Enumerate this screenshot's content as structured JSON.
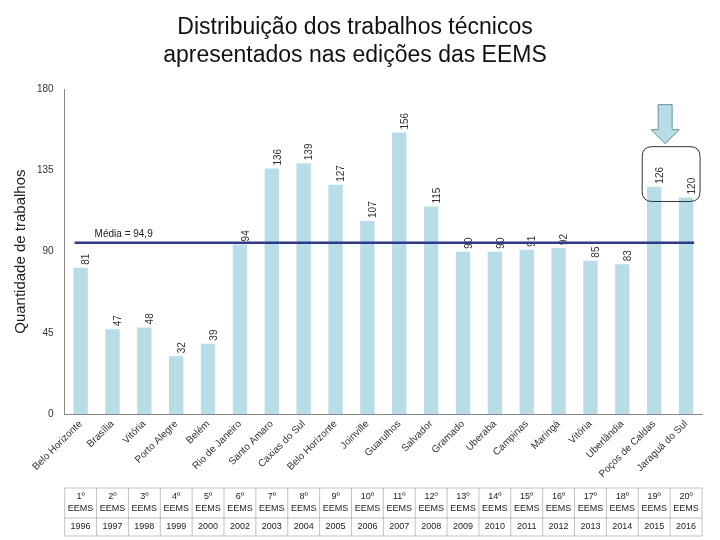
{
  "chart_data": {
    "type": "bar",
    "title": [
      "Distribuição dos trabalhos técnicos",
      "apresentados nas edições das EEMS"
    ],
    "y_label": "Quantidade de trabalhos",
    "categories": [
      "Belo Horizonte",
      "Brasília",
      "Vitória",
      "Porto Alegre",
      "Belém",
      "Rio de Janeiro",
      "Santo Amaro",
      "Caxias do Sul",
      "Belo Horizonte",
      "Joinville",
      "Guarulhos",
      "Salvador",
      "Gramado",
      "Uberaba",
      "Campinas",
      "Maringá",
      "Vitória",
      "Uberlândia",
      "Poços de Caldas",
      "Jaraguá do Sul"
    ],
    "editions": [
      "1º EEMS",
      "2º EEMS",
      "3º EEMS",
      "4º EEMS",
      "5º EEMS",
      "6º EEMS",
      "7º EEMS",
      "8º EEMS",
      "9º EEMS",
      "10º EEMS",
      "11º EEMS",
      "12º EEMS",
      "13º EEMS",
      "14º EEMS",
      "15º EEMS",
      "16º EEMS",
      "17º EEMS",
      "18º EEMS",
      "19º EEMS",
      "20º EEMS"
    ],
    "years": [
      "1996",
      "1997",
      "1998",
      "1999",
      "2000",
      "2002",
      "2003",
      "2004",
      "2005",
      "2006",
      "2007",
      "2008",
      "2009",
      "2010",
      "2011",
      "2012",
      "2013",
      "2014",
      "2015",
      "2016"
    ],
    "values": [
      81,
      47,
      48,
      32,
      39,
      94,
      136,
      139,
      127,
      107,
      156,
      115,
      90,
      90,
      91,
      92,
      85,
      83,
      126,
      120
    ],
    "color": "#b7dde8",
    "ylim": [
      0,
      180
    ],
    "yticks": [
      0,
      45,
      90,
      135,
      180
    ],
    "grid": false,
    "data_labels": true,
    "annotations": [
      {
        "text": "Média = 94,9",
        "value": 94.9,
        "color": "#2e3a87"
      }
    ]
  }
}
